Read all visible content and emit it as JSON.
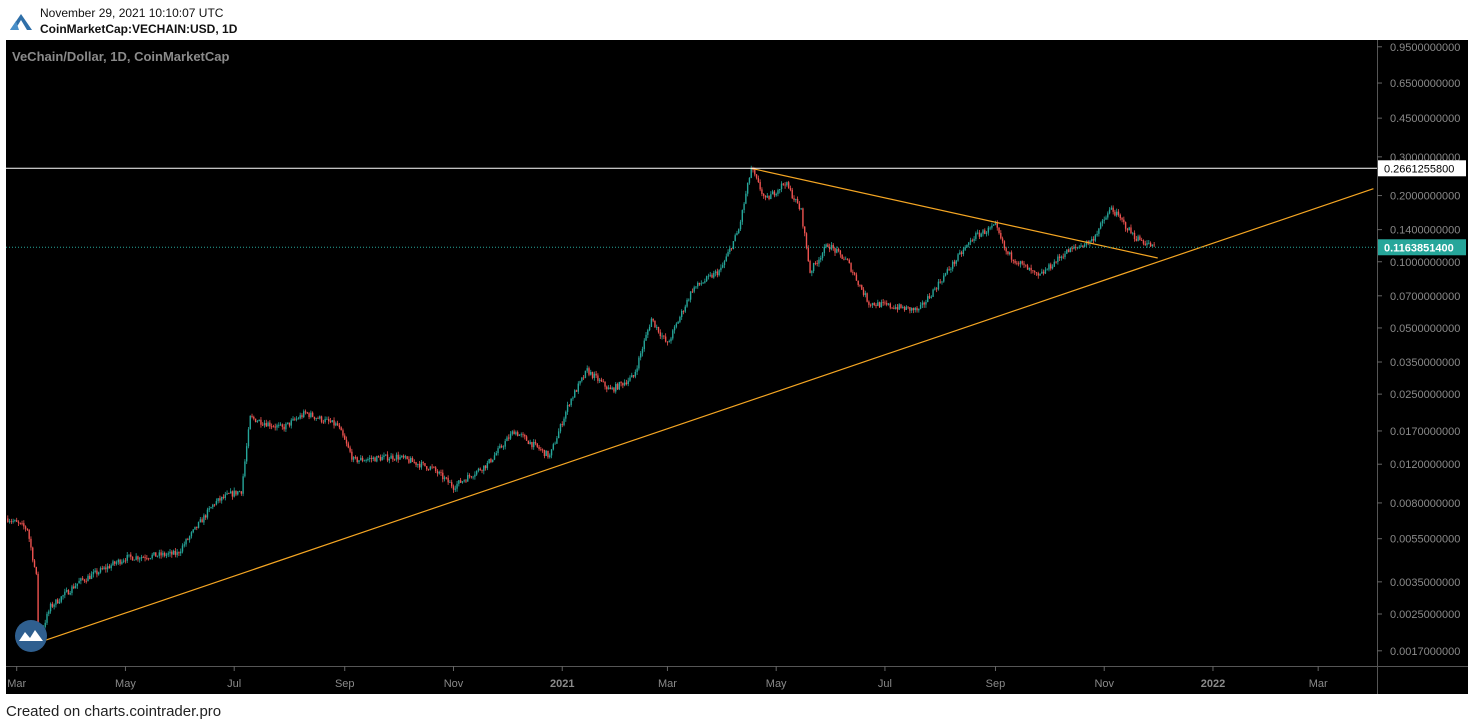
{
  "header": {
    "timestamp": "November 29, 2021 10:10:07 UTC",
    "symbol": "CoinMarketCap:VECHAIN:USD, 1D"
  },
  "footer": {
    "text": "Created on charts.cointrader.pro"
  },
  "colors": {
    "background": "#000000",
    "up": "#26a69a",
    "down": "#ef5350",
    "trendline": "#f5a623",
    "resistance": "#ffffff",
    "price_badge": "#26a69a"
  },
  "chart_data": {
    "type": "candlestick",
    "title": "VeChain/Dollar, 1D, CoinMarketCap",
    "y_scale": "log",
    "ylim": [
      0.00145,
      1.02
    ],
    "x_range": [
      "2020-02-24",
      "2022-04-03"
    ],
    "y_ticks": [
      {
        "value": 0.95,
        "label": "0.9500000000"
      },
      {
        "value": 0.65,
        "label": "0.6500000000"
      },
      {
        "value": 0.45,
        "label": "0.4500000000"
      },
      {
        "value": 0.3,
        "label": "0.3000000000"
      },
      {
        "value": 0.2,
        "label": "0.2000000000"
      },
      {
        "value": 0.14,
        "label": "0.1400000000"
      },
      {
        "value": 0.1,
        "label": "0.1000000000"
      },
      {
        "value": 0.07,
        "label": "0.0700000000"
      },
      {
        "value": 0.05,
        "label": "0.0500000000"
      },
      {
        "value": 0.035,
        "label": "0.0350000000"
      },
      {
        "value": 0.025,
        "label": "0.0250000000"
      },
      {
        "value": 0.017,
        "label": "0.0170000000"
      },
      {
        "value": 0.012,
        "label": "0.0120000000"
      },
      {
        "value": 0.008,
        "label": "0.0080000000"
      },
      {
        "value": 0.0055,
        "label": "0.0055000000"
      },
      {
        "value": 0.0035,
        "label": "0.0035000000"
      },
      {
        "value": 0.0025,
        "label": "0.0025000000"
      },
      {
        "value": 0.0017,
        "label": "0.0017000000"
      }
    ],
    "x_ticks": [
      {
        "date": "2020-03-01",
        "label": "Mar"
      },
      {
        "date": "2020-05-01",
        "label": "May"
      },
      {
        "date": "2020-07-01",
        "label": "Jul"
      },
      {
        "date": "2020-09-01",
        "label": "Sep"
      },
      {
        "date": "2020-11-01",
        "label": "Nov"
      },
      {
        "date": "2021-01-01",
        "label": "2021"
      },
      {
        "date": "2021-03-01",
        "label": "Mar"
      },
      {
        "date": "2021-05-01",
        "label": "May"
      },
      {
        "date": "2021-07-01",
        "label": "Jul"
      },
      {
        "date": "2021-09-01",
        "label": "Sep"
      },
      {
        "date": "2021-11-01",
        "label": "Nov"
      },
      {
        "date": "2022-01-01",
        "label": "2022"
      },
      {
        "date": "2022-03-01",
        "label": "Mar"
      }
    ],
    "price_path": [
      {
        "date": "2020-02-25",
        "value": 0.0068
      },
      {
        "date": "2020-03-07",
        "value": 0.0061
      },
      {
        "date": "2020-03-12",
        "value": 0.0037
      },
      {
        "date": "2020-03-13",
        "value": 0.0019
      },
      {
        "date": "2020-03-20",
        "value": 0.0027
      },
      {
        "date": "2020-04-05",
        "value": 0.0035
      },
      {
        "date": "2020-05-01",
        "value": 0.0045
      },
      {
        "date": "2020-05-30",
        "value": 0.0047
      },
      {
        "date": "2020-06-20",
        "value": 0.008
      },
      {
        "date": "2020-06-28",
        "value": 0.0087
      },
      {
        "date": "2020-07-05",
        "value": 0.0091
      },
      {
        "date": "2020-07-10",
        "value": 0.0195
      },
      {
        "date": "2020-07-28",
        "value": 0.0175
      },
      {
        "date": "2020-08-10",
        "value": 0.0205
      },
      {
        "date": "2020-08-28",
        "value": 0.018
      },
      {
        "date": "2020-09-06",
        "value": 0.0125
      },
      {
        "date": "2020-09-30",
        "value": 0.013
      },
      {
        "date": "2020-10-20",
        "value": 0.0115
      },
      {
        "date": "2020-11-01",
        "value": 0.0095
      },
      {
        "date": "2020-11-20",
        "value": 0.012
      },
      {
        "date": "2020-12-05",
        "value": 0.017
      },
      {
        "date": "2020-12-25",
        "value": 0.013
      },
      {
        "date": "2021-01-05",
        "value": 0.023
      },
      {
        "date": "2021-01-15",
        "value": 0.032
      },
      {
        "date": "2021-01-28",
        "value": 0.026
      },
      {
        "date": "2021-02-10",
        "value": 0.03
      },
      {
        "date": "2021-02-20",
        "value": 0.055
      },
      {
        "date": "2021-03-01",
        "value": 0.042
      },
      {
        "date": "2021-03-15",
        "value": 0.075
      },
      {
        "date": "2021-03-31",
        "value": 0.092
      },
      {
        "date": "2021-04-10",
        "value": 0.14
      },
      {
        "date": "2021-04-17",
        "value": 0.266
      },
      {
        "date": "2021-04-25",
        "value": 0.19
      },
      {
        "date": "2021-05-06",
        "value": 0.23
      },
      {
        "date": "2021-05-15",
        "value": 0.17
      },
      {
        "date": "2021-05-20",
        "value": 0.09
      },
      {
        "date": "2021-05-30",
        "value": 0.12
      },
      {
        "date": "2021-06-10",
        "value": 0.1
      },
      {
        "date": "2021-06-22",
        "value": 0.065
      },
      {
        "date": "2021-07-20",
        "value": 0.06
      },
      {
        "date": "2021-08-07",
        "value": 0.095
      },
      {
        "date": "2021-08-20",
        "value": 0.13
      },
      {
        "date": "2021-09-01",
        "value": 0.145
      },
      {
        "date": "2021-09-07",
        "value": 0.11
      },
      {
        "date": "2021-09-25",
        "value": 0.085
      },
      {
        "date": "2021-10-10",
        "value": 0.11
      },
      {
        "date": "2021-10-25",
        "value": 0.125
      },
      {
        "date": "2021-11-05",
        "value": 0.175
      },
      {
        "date": "2021-11-18",
        "value": 0.13
      },
      {
        "date": "2021-11-29",
        "value": 0.1164
      }
    ],
    "lines": [
      {
        "name": "support-trendline",
        "from": {
          "date": "2020-03-13",
          "value": 0.00185
        },
        "to": {
          "date": "2022-04-01",
          "value": 0.215
        }
      },
      {
        "name": "descending-trendline",
        "from": {
          "date": "2021-04-17",
          "value": 0.266
        },
        "to": {
          "date": "2021-12-01",
          "value": 0.104
        }
      },
      {
        "name": "resistance-level",
        "value": 0.26612558
      }
    ],
    "resistance_label": "0.2661255800",
    "last_price": 0.11638514,
    "last_price_label": "0.1163851400"
  }
}
